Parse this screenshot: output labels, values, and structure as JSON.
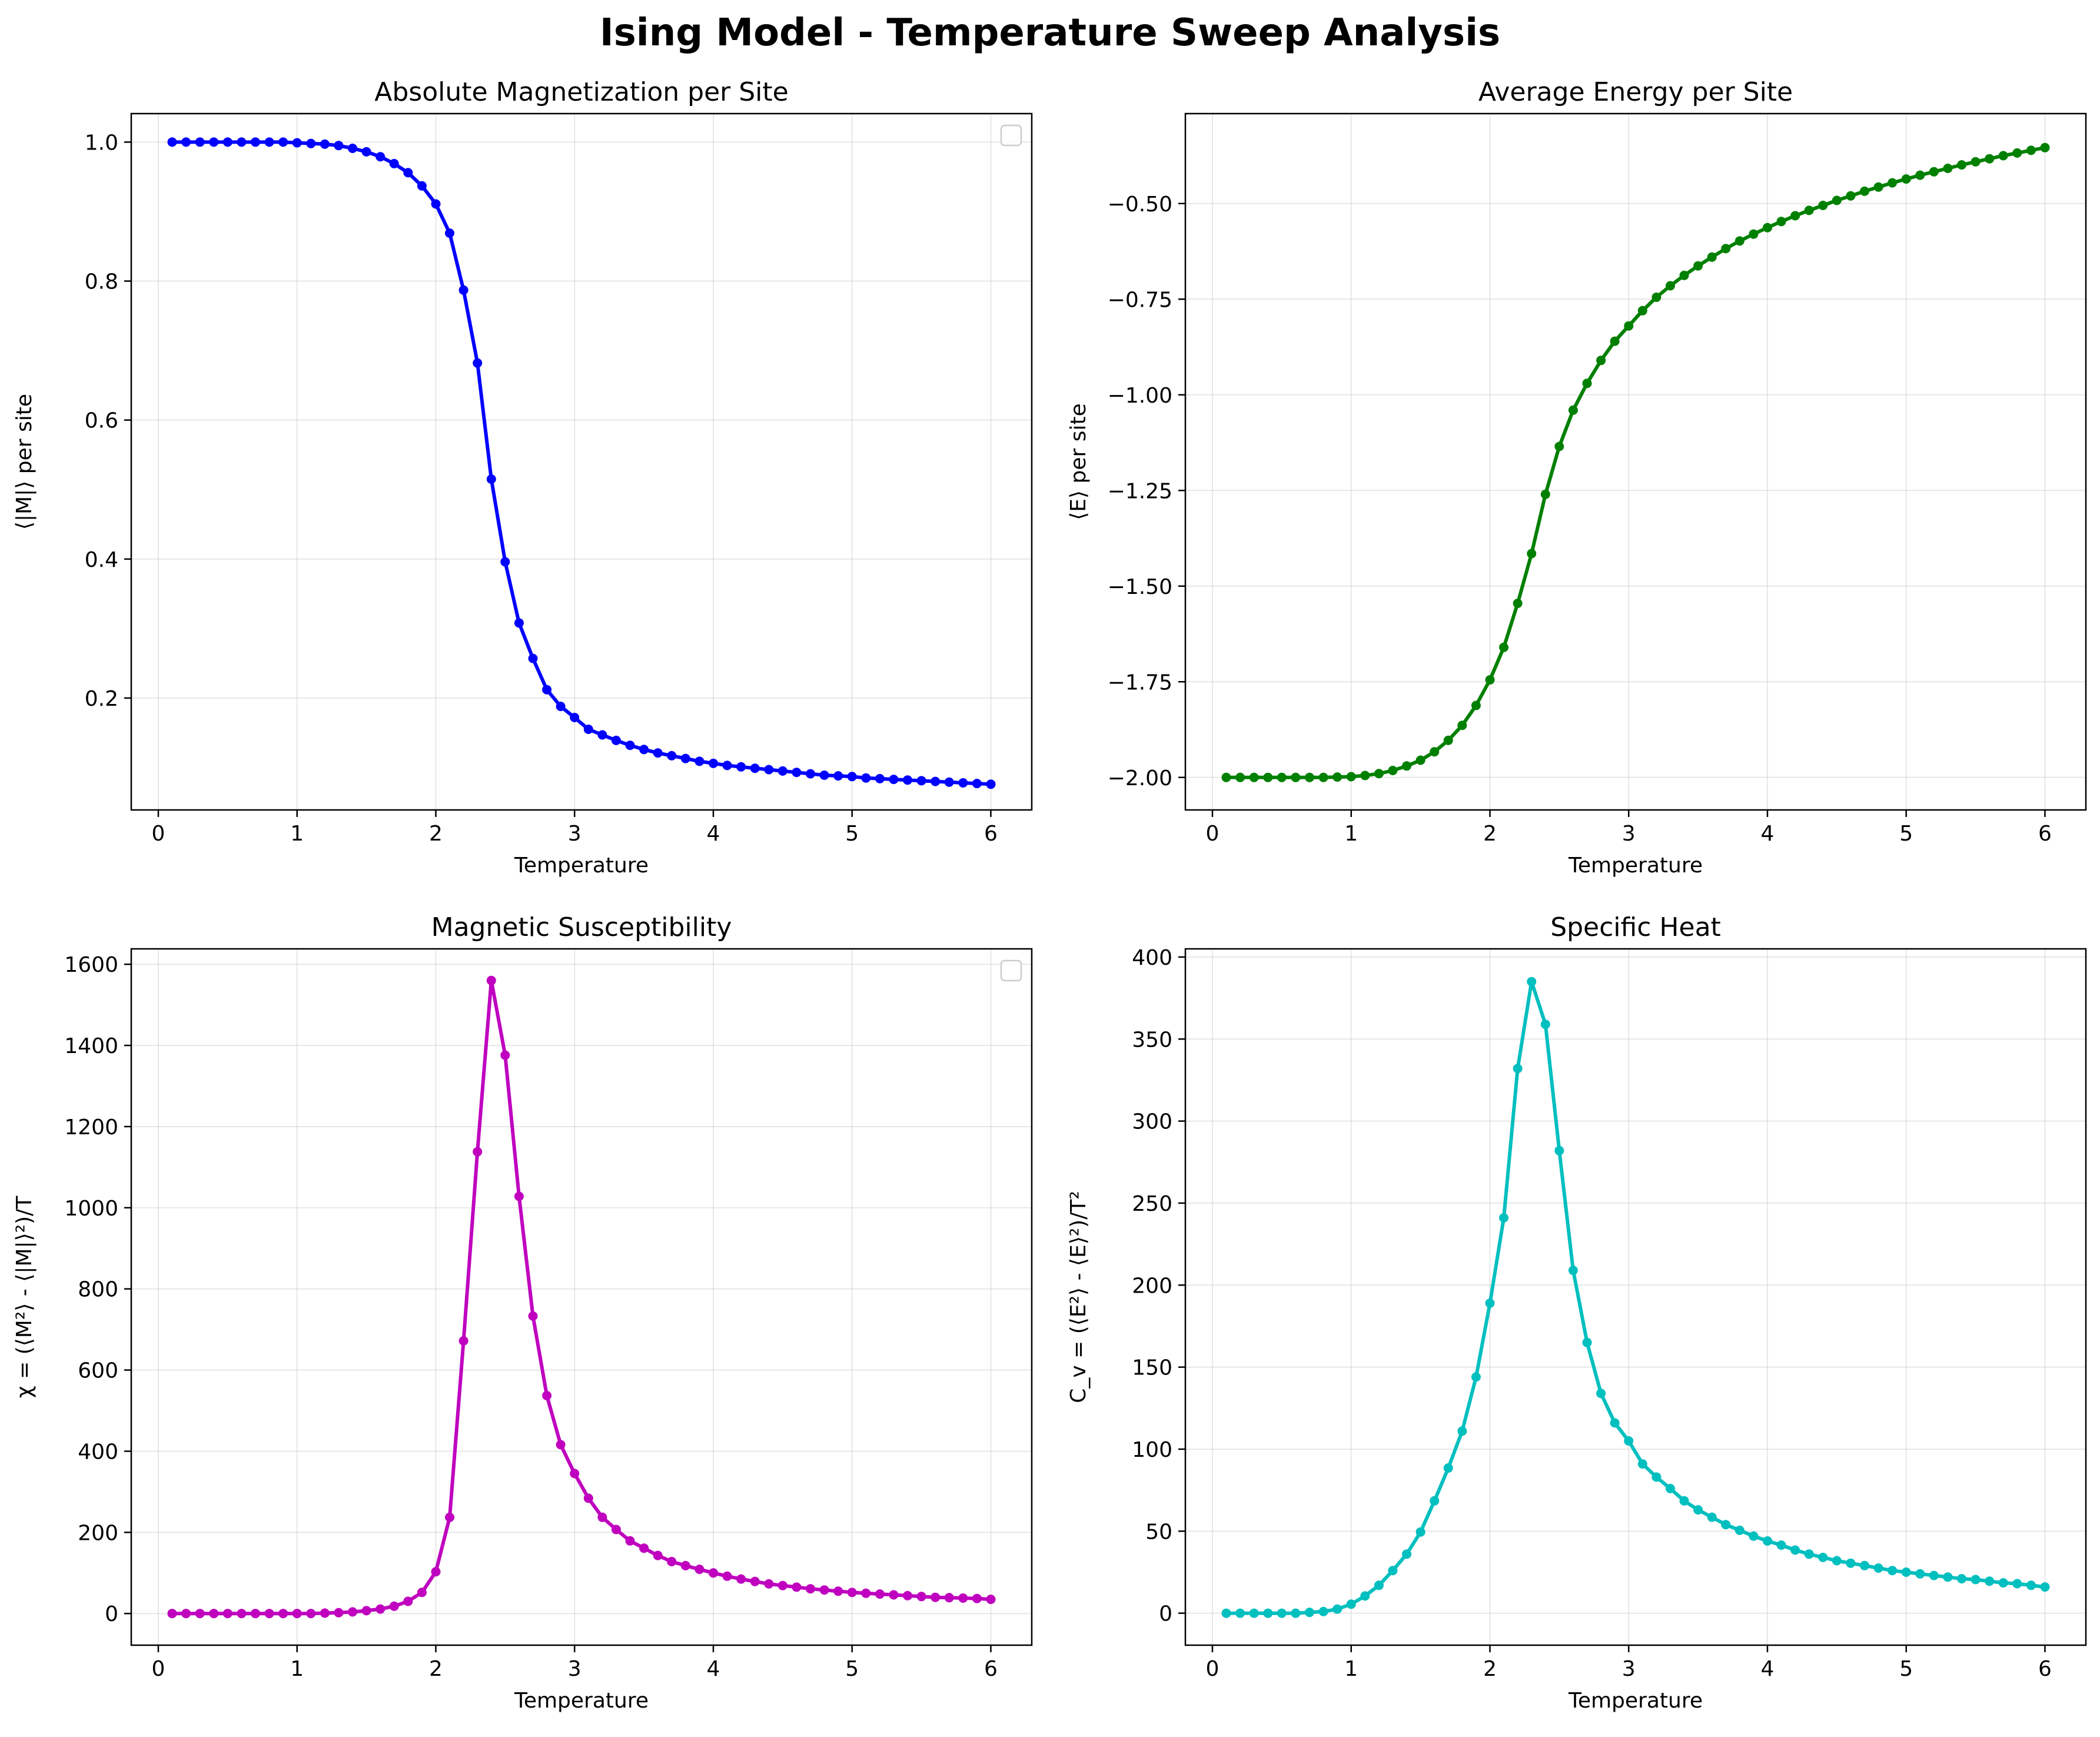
{
  "suptitle": "Ising Model - Temperature Sweep Analysis",
  "chart_data": [
    {
      "type": "line",
      "title": "Absolute Magnetization per Site",
      "xlabel": "Temperature",
      "ylabel": "⟨|M|⟩ per site",
      "color": "#0000ff",
      "xlim": [
        -0.195,
        6.295
      ],
      "ylim": [
        0.039,
        1.041
      ],
      "xticks": [
        0,
        1,
        2,
        3,
        4,
        5,
        6
      ],
      "xtick_labels": [
        "0",
        "1",
        "2",
        "3",
        "4",
        "5",
        "6"
      ],
      "yticks": [
        0.2,
        0.4,
        0.6,
        0.8,
        1.0
      ],
      "ytick_labels": [
        "0.2",
        "0.4",
        "0.6",
        "0.8",
        "1.0"
      ],
      "legend": "empty box, top-right",
      "x": [
        0.1,
        0.2,
        0.3,
        0.4,
        0.5,
        0.6,
        0.7,
        0.8,
        0.9,
        1.0,
        1.1,
        1.2,
        1.3,
        1.4,
        1.5,
        1.6,
        1.7,
        1.8,
        1.9,
        2.0,
        2.1,
        2.2,
        2.3,
        2.4,
        2.5,
        2.6,
        2.7,
        2.8,
        2.9,
        3.0,
        3.1,
        3.2,
        3.3,
        3.4,
        3.5,
        3.6,
        3.7,
        3.8,
        3.9,
        4.0,
        4.1,
        4.2,
        4.3,
        4.4,
        4.5,
        4.6,
        4.7,
        4.8,
        4.9,
        5.0,
        5.1,
        5.2,
        5.3,
        5.4,
        5.5,
        5.6,
        5.7,
        5.8,
        5.9,
        6.0
      ],
      "y": [
        1.0,
        1.0,
        1.0,
        1.0,
        1.0,
        1.0,
        1.0,
        1.0,
        1.0,
        0.999,
        0.998,
        0.997,
        0.995,
        0.991,
        0.986,
        0.979,
        0.969,
        0.956,
        0.937,
        0.911,
        0.869,
        0.787,
        0.682,
        0.515,
        0.396,
        0.308,
        0.257,
        0.212,
        0.188,
        0.172,
        0.155,
        0.147,
        0.139,
        0.132,
        0.126,
        0.121,
        0.117,
        0.113,
        0.109,
        0.106,
        0.103,
        0.101,
        0.099,
        0.097,
        0.095,
        0.093,
        0.091,
        0.089,
        0.088,
        0.087,
        0.085,
        0.084,
        0.083,
        0.082,
        0.081,
        0.08,
        0.079,
        0.078,
        0.077,
        0.076
      ]
    },
    {
      "type": "line",
      "title": "Average Energy per Site",
      "xlabel": "Temperature",
      "ylabel": "⟨E⟩ per site",
      "color": "#008000",
      "xlim": [
        -0.195,
        6.295
      ],
      "ylim": [
        -2.085,
        -0.265
      ],
      "xticks": [
        0,
        1,
        2,
        3,
        4,
        5,
        6
      ],
      "xtick_labels": [
        "0",
        "1",
        "2",
        "3",
        "4",
        "5",
        "6"
      ],
      "yticks": [
        -2.0,
        -1.75,
        -1.5,
        -1.25,
        -1.0,
        -0.75,
        -0.5
      ],
      "ytick_labels": [
        "−2.00",
        "−1.75",
        "−1.50",
        "−1.25",
        "−1.00",
        "−0.75",
        "−0.50"
      ],
      "x": [
        0.1,
        0.2,
        0.3,
        0.4,
        0.5,
        0.6,
        0.7,
        0.8,
        0.9,
        1.0,
        1.1,
        1.2,
        1.3,
        1.4,
        1.5,
        1.6,
        1.7,
        1.8,
        1.9,
        2.0,
        2.1,
        2.2,
        2.3,
        2.4,
        2.5,
        2.6,
        2.7,
        2.8,
        2.9,
        3.0,
        3.1,
        3.2,
        3.3,
        3.4,
        3.5,
        3.6,
        3.7,
        3.8,
        3.9,
        4.0,
        4.1,
        4.2,
        4.3,
        4.4,
        4.5,
        4.6,
        4.7,
        4.8,
        4.9,
        5.0,
        5.1,
        5.2,
        5.3,
        5.4,
        5.5,
        5.6,
        5.7,
        5.8,
        5.9,
        6.0
      ],
      "y": [
        -2.0,
        -2.0,
        -2.0,
        -2.0,
        -2.0,
        -2.0,
        -2.0,
        -2.0,
        -1.999,
        -1.998,
        -1.995,
        -1.99,
        -1.982,
        -1.97,
        -1.955,
        -1.933,
        -1.903,
        -1.864,
        -1.812,
        -1.745,
        -1.66,
        -1.545,
        -1.415,
        -1.26,
        -1.135,
        -1.04,
        -0.97,
        -0.91,
        -0.86,
        -0.82,
        -0.78,
        -0.745,
        -0.715,
        -0.688,
        -0.663,
        -0.64,
        -0.618,
        -0.598,
        -0.58,
        -0.563,
        -0.547,
        -0.532,
        -0.518,
        -0.505,
        -0.492,
        -0.48,
        -0.468,
        -0.457,
        -0.446,
        -0.436,
        -0.426,
        -0.417,
        -0.408,
        -0.399,
        -0.391,
        -0.383,
        -0.375,
        -0.368,
        -0.361,
        -0.354
      ]
    },
    {
      "type": "line",
      "title": "Magnetic Susceptibility",
      "xlabel": "Temperature",
      "ylabel": "χ = (⟨M²⟩ - ⟨|M|⟩²)/T",
      "color": "#bf00bf",
      "xlim": [
        -0.195,
        6.295
      ],
      "ylim": [
        -78,
        1638
      ],
      "xticks": [
        0,
        1,
        2,
        3,
        4,
        5,
        6
      ],
      "xtick_labels": [
        "0",
        "1",
        "2",
        "3",
        "4",
        "5",
        "6"
      ],
      "yticks": [
        0,
        200,
        400,
        600,
        800,
        1000,
        1200,
        1400,
        1600
      ],
      "ytick_labels": [
        "0",
        "200",
        "400",
        "600",
        "800",
        "1000",
        "1200",
        "1400",
        "1600"
      ],
      "legend": "empty box, top-right",
      "x": [
        0.1,
        0.2,
        0.3,
        0.4,
        0.5,
        0.6,
        0.7,
        0.8,
        0.9,
        1.0,
        1.1,
        1.2,
        1.3,
        1.4,
        1.5,
        1.6,
        1.7,
        1.8,
        1.9,
        2.0,
        2.1,
        2.2,
        2.3,
        2.4,
        2.5,
        2.6,
        2.7,
        2.8,
        2.9,
        3.0,
        3.1,
        3.2,
        3.3,
        3.4,
        3.5,
        3.6,
        3.7,
        3.8,
        3.9,
        4.0,
        4.1,
        4.2,
        4.3,
        4.4,
        4.5,
        4.6,
        4.7,
        4.8,
        4.9,
        5.0,
        5.1,
        5.2,
        5.3,
        5.4,
        5.5,
        5.6,
        5.7,
        5.8,
        5.9,
        6.0
      ],
      "y": [
        0,
        0,
        0,
        0,
        0,
        0,
        0,
        0,
        0,
        0,
        0,
        1,
        2,
        4,
        7,
        11,
        18,
        30,
        52,
        103,
        237,
        672,
        1138,
        1560,
        1376,
        1028,
        733,
        537,
        416,
        345,
        284,
        237,
        207,
        179,
        161,
        143,
        128,
        118,
        109,
        100,
        92,
        85,
        79,
        73,
        69,
        65,
        61,
        58,
        55,
        52,
        50,
        48,
        46,
        44,
        42,
        40,
        39,
        38,
        37,
        35
      ]
    },
    {
      "type": "line",
      "title": "Specific Heat",
      "xlabel": "Temperature",
      "ylabel": "C_v = (⟨E²⟩ - ⟨E⟩²)/T²",
      "color": "#00bfbf",
      "xlim": [
        -0.195,
        6.295
      ],
      "ylim": [
        -19.5,
        405
      ],
      "xticks": [
        0,
        1,
        2,
        3,
        4,
        5,
        6
      ],
      "xtick_labels": [
        "0",
        "1",
        "2",
        "3",
        "4",
        "5",
        "6"
      ],
      "yticks": [
        0,
        50,
        100,
        150,
        200,
        250,
        300,
        350,
        400
      ],
      "ytick_labels": [
        "0",
        "50",
        "100",
        "150",
        "200",
        "250",
        "300",
        "350",
        "400"
      ],
      "x": [
        0.1,
        0.2,
        0.3,
        0.4,
        0.5,
        0.6,
        0.7,
        0.8,
        0.9,
        1.0,
        1.1,
        1.2,
        1.3,
        1.4,
        1.5,
        1.6,
        1.7,
        1.8,
        1.9,
        2.0,
        2.1,
        2.2,
        2.3,
        2.4,
        2.5,
        2.6,
        2.7,
        2.8,
        2.9,
        3.0,
        3.1,
        3.2,
        3.3,
        3.4,
        3.5,
        3.6,
        3.7,
        3.8,
        3.9,
        4.0,
        4.1,
        4.2,
        4.3,
        4.4,
        4.5,
        4.6,
        4.7,
        4.8,
        4.9,
        5.0,
        5.1,
        5.2,
        5.3,
        5.4,
        5.5,
        5.6,
        5.7,
        5.8,
        5.9,
        6.0
      ],
      "y": [
        0,
        0,
        0,
        0,
        0,
        0,
        0.5,
        1,
        2.5,
        5.5,
        10.5,
        17,
        26,
        36,
        49.5,
        68.5,
        88.5,
        111,
        144,
        189,
        241,
        332,
        385,
        359,
        282,
        209,
        165,
        134,
        116,
        105,
        91,
        83,
        76,
        68.5,
        63,
        58.5,
        54,
        50.5,
        47,
        44,
        41.5,
        38.5,
        36,
        34,
        32,
        30.5,
        29,
        27.5,
        26,
        25,
        24,
        23,
        22,
        21,
        20.5,
        19.5,
        18.5,
        18,
        17,
        16
      ]
    }
  ]
}
